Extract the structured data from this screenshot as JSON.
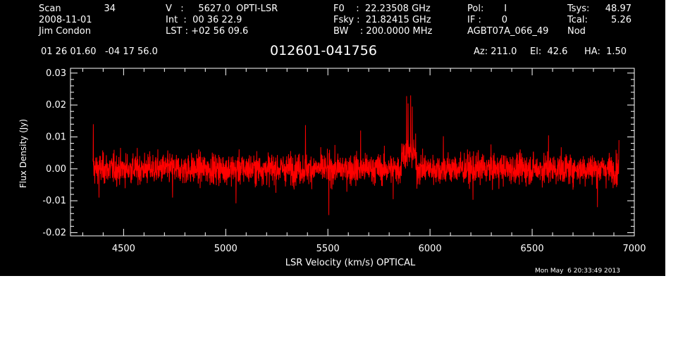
{
  "header": {
    "scan_label": "Scan",
    "scan_number": "34",
    "date": "2008-11-01",
    "observer": "Jim Condon",
    "velocity": "V   :     5627.0  OPTI-LSR",
    "integration": "Int  :  00 36 22.9",
    "lst": "LST : +02 56 09.6",
    "f0": "F0    :  22.23508 GHz",
    "fsky": "Fsky :  21.82415 GHz",
    "bw": "BW    : 200.0000 MHz",
    "pol": "Pol:       I",
    "if": "IF :       0",
    "project": "AGBT07A_066_49",
    "tsys_label": "Tsys:",
    "tsys_value": "48.97",
    "tcal_label": "Tcal:",
    "tcal_value": "5.26",
    "mode": "Nod",
    "coordinates": "01 26 01.60   -04 17 56.0",
    "source": "012601-041756",
    "az": "Az: 211.0",
    "el": "El:  42.6",
    "ha": "HA:  1.50"
  },
  "timestamp": "Mon May  6 20:33:49 2013",
  "colors": {
    "background": "#000000",
    "axes": "#ffffff",
    "trace": "#ff0000"
  },
  "chart_data": {
    "type": "line",
    "xlabel": "LSR Velocity (km/s) OPTICAL",
    "ylabel": "Flux Density (Jy)",
    "xlim": [
      4240,
      7000
    ],
    "ylim": [
      -0.021,
      0.0315
    ],
    "x_ticks": [
      {
        "value": 4500,
        "label": "4500"
      },
      {
        "value": 5000,
        "label": "5000"
      },
      {
        "value": 5500,
        "label": "5500"
      },
      {
        "value": 6000,
        "label": "6000"
      },
      {
        "value": 6500,
        "label": "6500"
      },
      {
        "value": 7000,
        "label": "7000"
      }
    ],
    "y_ticks": [
      {
        "value": -0.02,
        "label": "-0.02"
      },
      {
        "value": -0.01,
        "label": "-0.01"
      },
      {
        "value": 0.0,
        "label": "0.00"
      },
      {
        "value": 0.01,
        "label": "0.01"
      },
      {
        "value": 0.02,
        "label": "0.02"
      },
      {
        "value": 0.03,
        "label": "0.03"
      }
    ],
    "series": [
      {
        "velocity_range": [
          4350,
          6925
        ],
        "noise_rms": 0.0033,
        "features": [
          {
            "x": 4352,
            "y": 0.014
          },
          {
            "x": 4380,
            "y": -0.009
          },
          {
            "x": 4740,
            "y": -0.009
          },
          {
            "x": 5050,
            "y": -0.0108
          },
          {
            "x": 5390,
            "y": 0.0137
          },
          {
            "x": 5505,
            "y": -0.0145
          },
          {
            "x": 5660,
            "y": 0.012
          },
          {
            "x": 5820,
            "y": -0.0095
          },
          {
            "x": 5885,
            "y": 0.0228
          },
          {
            "x": 5893,
            "y": 0.0205
          },
          {
            "x": 5905,
            "y": 0.023
          },
          {
            "x": 5913,
            "y": 0.0195
          },
          {
            "x": 6065,
            "y": 0.0102
          },
          {
            "x": 6210,
            "y": -0.0097
          },
          {
            "x": 6580,
            "y": 0.0105
          },
          {
            "x": 6820,
            "y": -0.012
          },
          {
            "x": 6925,
            "y": 0.009
          }
        ]
      }
    ]
  }
}
